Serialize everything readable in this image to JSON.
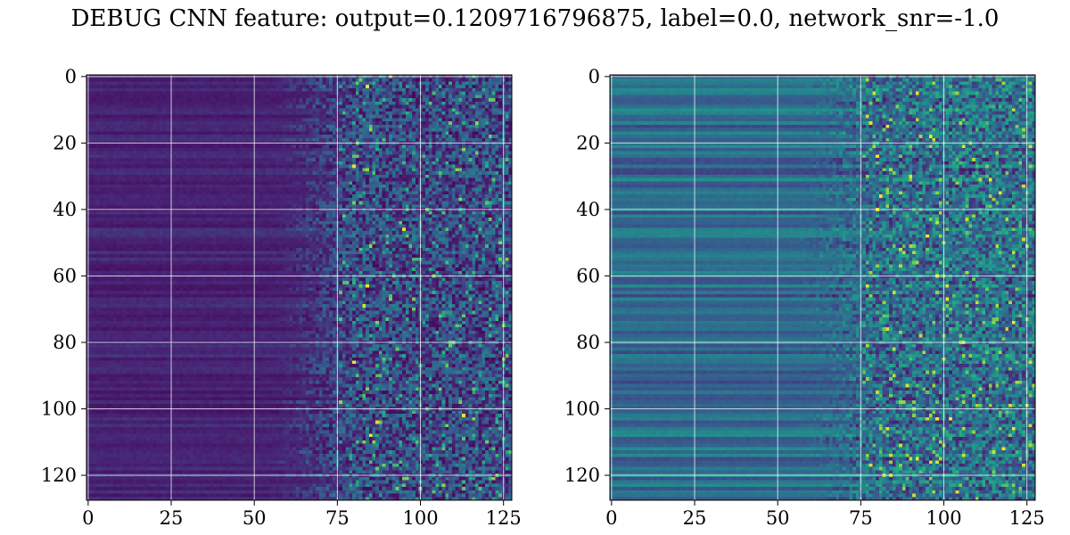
{
  "figure": {
    "title": "DEBUG CNN feature: output=0.1209716796875, label=0.0, network_snr=-1.0"
  },
  "chart_data": [
    {
      "type": "heatmap",
      "title": "",
      "xlabel": "",
      "ylabel": "",
      "rows": 128,
      "cols": 128,
      "xlim": [
        -0.5,
        127.5
      ],
      "ylim": [
        127.5,
        -0.5
      ],
      "x_ticks": [
        0,
        25,
        50,
        75,
        100,
        125
      ],
      "y_ticks": [
        0,
        20,
        40,
        60,
        80,
        100,
        120
      ],
      "grid": true,
      "colormap": "viridis",
      "background_level": 0.12,
      "transition_col": 75,
      "noise_level_after_transition": 0.22,
      "hotspots": [
        [
          84,
          3
        ],
        [
          80,
          27
        ],
        [
          84,
          63
        ],
        [
          83,
          69
        ],
        [
          80,
          86
        ],
        [
          87,
          104
        ],
        [
          113,
          102
        ],
        [
          85,
          108
        ],
        [
          95,
          46
        ]
      ]
    },
    {
      "type": "heatmap",
      "title": "",
      "xlabel": "",
      "ylabel": "",
      "rows": 128,
      "cols": 128,
      "xlim": [
        -0.5,
        127.5
      ],
      "ylim": [
        127.5,
        -0.5
      ],
      "x_ticks": [
        0,
        25,
        50,
        75,
        100,
        125
      ],
      "y_ticks": [
        0,
        20,
        40,
        60,
        80,
        100,
        120
      ],
      "grid": true,
      "colormap": "viridis",
      "background_level": 0.35,
      "transition_col": 75,
      "noise_level_after_transition": 0.25,
      "hotspots": [
        [
          80,
          40
        ],
        [
          90,
          115
        ],
        [
          92,
          115
        ],
        [
          85,
          82
        ],
        [
          83,
          15
        ],
        [
          110,
          68
        ],
        [
          95,
          103
        ],
        [
          80,
          24
        ]
      ]
    }
  ],
  "colors": {
    "grid": "#ffffff",
    "axis": "#000000"
  }
}
